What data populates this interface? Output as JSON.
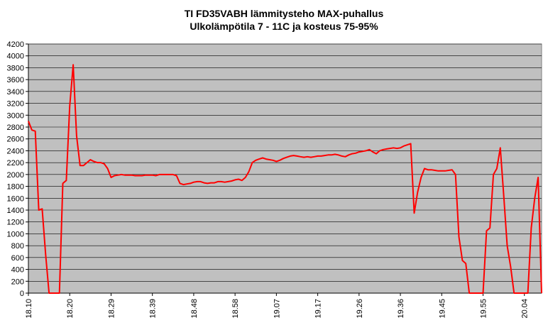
{
  "chart_data": {
    "type": "line",
    "title": "TI FD35VABH lämmitysteho MAX-puhallus",
    "subtitle": "Ulkolämpötila  7 - 11C ja kosteus 75-95%",
    "categories": [
      "18.10",
      null,
      null,
      null,
      null,
      null,
      null,
      null,
      null,
      null,
      null,
      null,
      "18.20",
      null,
      null,
      null,
      null,
      null,
      null,
      null,
      null,
      null,
      null,
      null,
      "18.29",
      null,
      null,
      null,
      null,
      null,
      null,
      null,
      null,
      null,
      null,
      null,
      "18.39",
      null,
      null,
      null,
      null,
      null,
      null,
      null,
      null,
      null,
      null,
      null,
      "18.48",
      null,
      null,
      null,
      null,
      null,
      null,
      null,
      null,
      null,
      null,
      null,
      "18.58",
      null,
      null,
      null,
      null,
      null,
      null,
      null,
      null,
      null,
      null,
      null,
      "19.07",
      null,
      null,
      null,
      null,
      null,
      null,
      null,
      null,
      null,
      null,
      null,
      "19.17",
      null,
      null,
      null,
      null,
      null,
      null,
      null,
      null,
      null,
      null,
      null,
      "19.26",
      null,
      null,
      null,
      null,
      null,
      null,
      null,
      null,
      null,
      null,
      null,
      "19.36",
      null,
      null,
      null,
      null,
      null,
      null,
      null,
      null,
      null,
      null,
      null,
      "19.45",
      null,
      null,
      null,
      null,
      null,
      null,
      null,
      null,
      null,
      null,
      null,
      "19.55",
      null,
      null,
      null,
      null,
      null,
      null,
      null,
      null,
      null,
      null,
      null,
      "20.04",
      null,
      null,
      null,
      null,
      null
    ],
    "series": [
      {
        "color": "#ff0000",
        "values": [
          2900,
          2750,
          2730,
          1400,
          1420,
          650,
          0,
          0,
          0,
          0,
          1850,
          1900,
          3150,
          3850,
          2650,
          2150,
          2150,
          2200,
          2250,
          2220,
          2200,
          2200,
          2180,
          2100,
          1950,
          1980,
          1990,
          2000,
          1990,
          1990,
          1990,
          1980,
          1980,
          1980,
          1990,
          1990,
          1990,
          1980,
          2000,
          2000,
          2000,
          2000,
          2000,
          1980,
          1850,
          1830,
          1840,
          1850,
          1870,
          1880,
          1880,
          1860,
          1850,
          1860,
          1860,
          1880,
          1880,
          1870,
          1880,
          1890,
          1910,
          1920,
          1900,
          1950,
          2050,
          2200,
          2240,
          2260,
          2280,
          2260,
          2250,
          2240,
          2220,
          2240,
          2270,
          2290,
          2310,
          2320,
          2310,
          2300,
          2290,
          2300,
          2290,
          2300,
          2310,
          2310,
          2320,
          2330,
          2330,
          2340,
          2330,
          2310,
          2300,
          2330,
          2350,
          2360,
          2380,
          2390,
          2400,
          2420,
          2380,
          2350,
          2400,
          2420,
          2430,
          2440,
          2450,
          2440,
          2450,
          2480,
          2500,
          2520,
          1350,
          1700,
          1950,
          2100,
          2080,
          2080,
          2070,
          2060,
          2060,
          2060,
          2070,
          2080,
          2000,
          950,
          550,
          500,
          0,
          0,
          0,
          0,
          0,
          1050,
          1100,
          2000,
          2100,
          2450,
          1650,
          800,
          450,
          0,
          0,
          0,
          0,
          0,
          1100,
          1600,
          1950,
          0
        ]
      }
    ],
    "ylim": [
      0,
      4200
    ],
    "yticks": [
      0,
      200,
      400,
      600,
      800,
      1000,
      1200,
      1400,
      1600,
      1800,
      2000,
      2200,
      2400,
      2600,
      2800,
      3000,
      3200,
      3400,
      3600,
      3800,
      4000,
      4200
    ],
    "grid": true,
    "background": "#c0c0c0"
  }
}
